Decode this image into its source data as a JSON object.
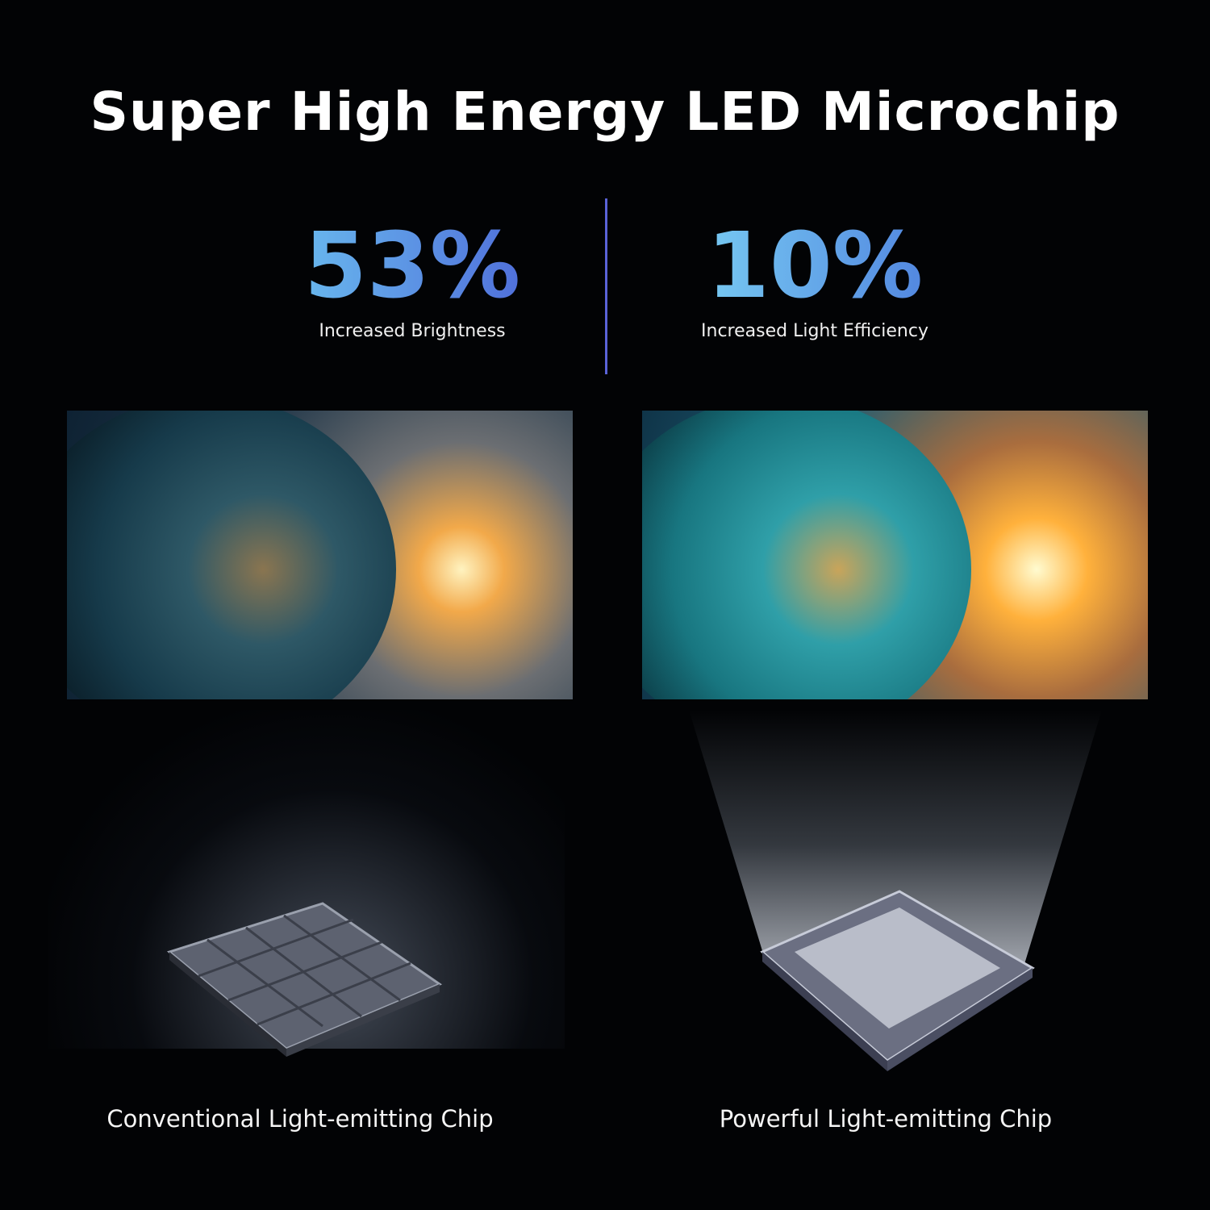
{
  "title": "Super High Energy LED Microchip",
  "stats": [
    {
      "value": "53%",
      "label": "Increased Brightness"
    },
    {
      "value": "10%",
      "label": "Increased Light Efficiency"
    }
  ],
  "chips": [
    {
      "caption": "Conventional Light-emitting Chip"
    },
    {
      "caption": "Powerful Light-emitting Chip"
    }
  ],
  "colors": {
    "background": "#020305",
    "accent_divider": "#5a63d8",
    "gradient_start": "#6ec8f2",
    "gradient_end": "#4a5fd6"
  }
}
